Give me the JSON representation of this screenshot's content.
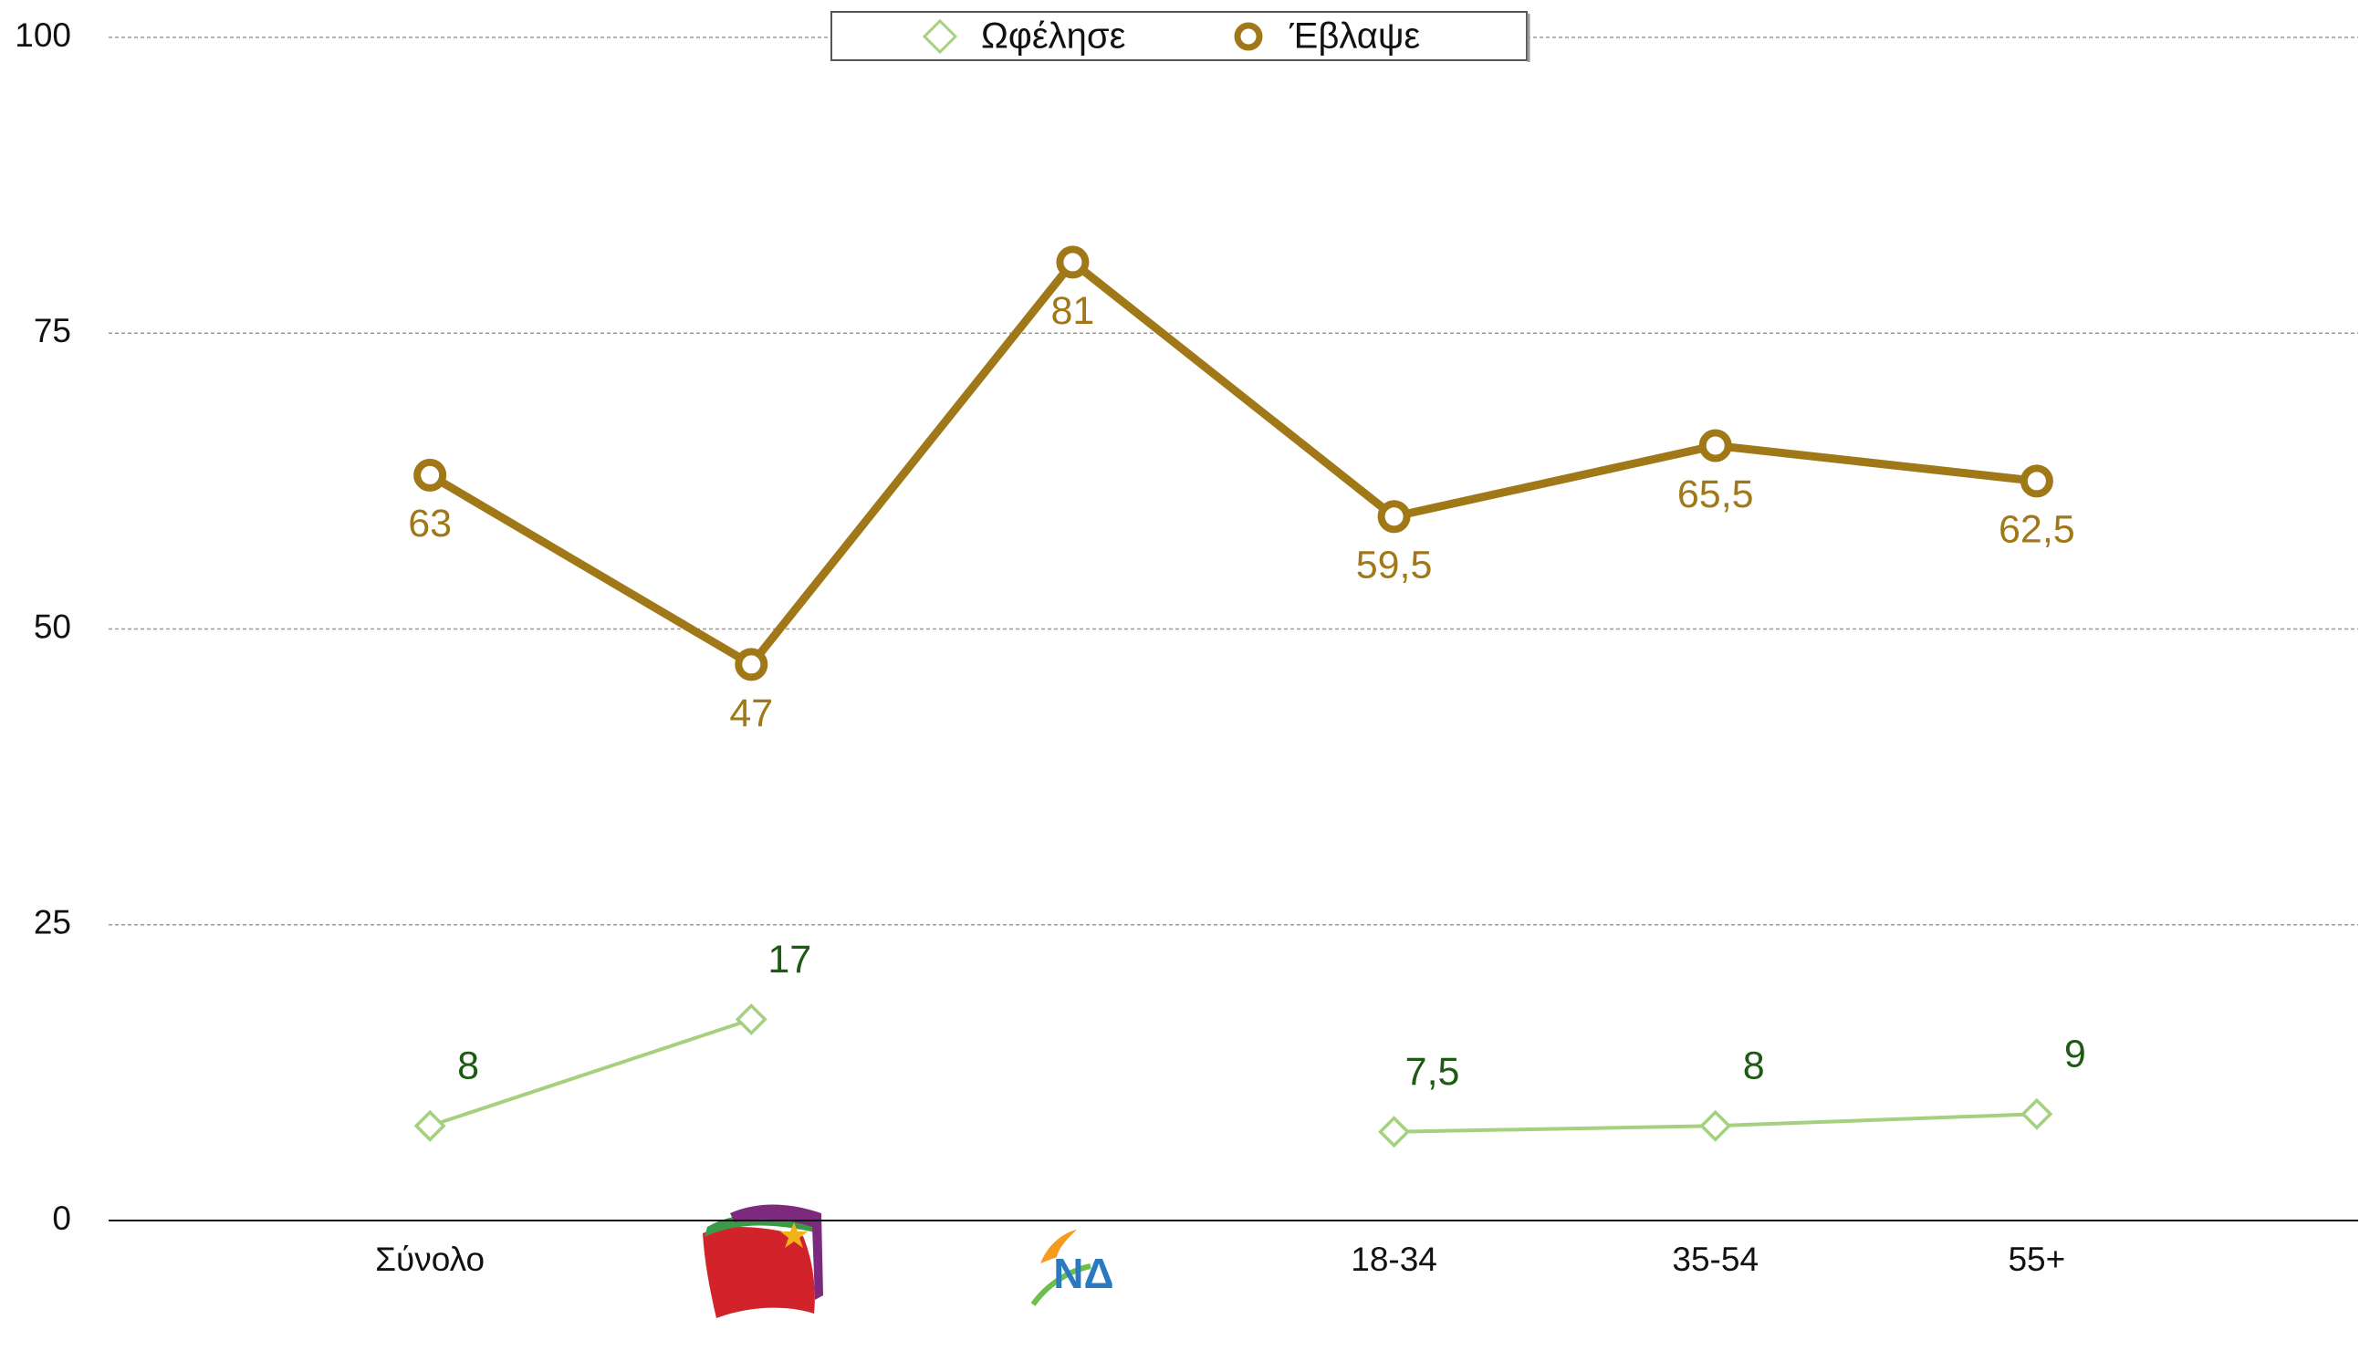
{
  "chart_data": {
    "type": "line",
    "categories": [
      "Σύνολο",
      null,
      "ΝΔ",
      "18-34",
      "35-54",
      "55+"
    ],
    "series": [
      {
        "name": "Ωφέλησε",
        "color": "#a3d17f",
        "label_color": "#1e5a14",
        "marker": "diamond",
        "values": [
          8,
          17,
          null,
          7.5,
          8,
          9
        ],
        "value_labels": [
          "8",
          "17",
          null,
          "7,5",
          "8",
          "9"
        ]
      },
      {
        "name": "Έβλαψε",
        "color": "#a07818",
        "label_color": "#a07818",
        "marker": "circle",
        "values": [
          63,
          47,
          81,
          59.5,
          65.5,
          62.5
        ],
        "value_labels": [
          "63",
          "47",
          "81",
          "59,5",
          "65,5",
          "62,5"
        ]
      }
    ],
    "ylim": [
      0,
      100
    ],
    "yticks": [
      0,
      25,
      50,
      75,
      100
    ],
    "grid": true,
    "legend": "top"
  }
}
